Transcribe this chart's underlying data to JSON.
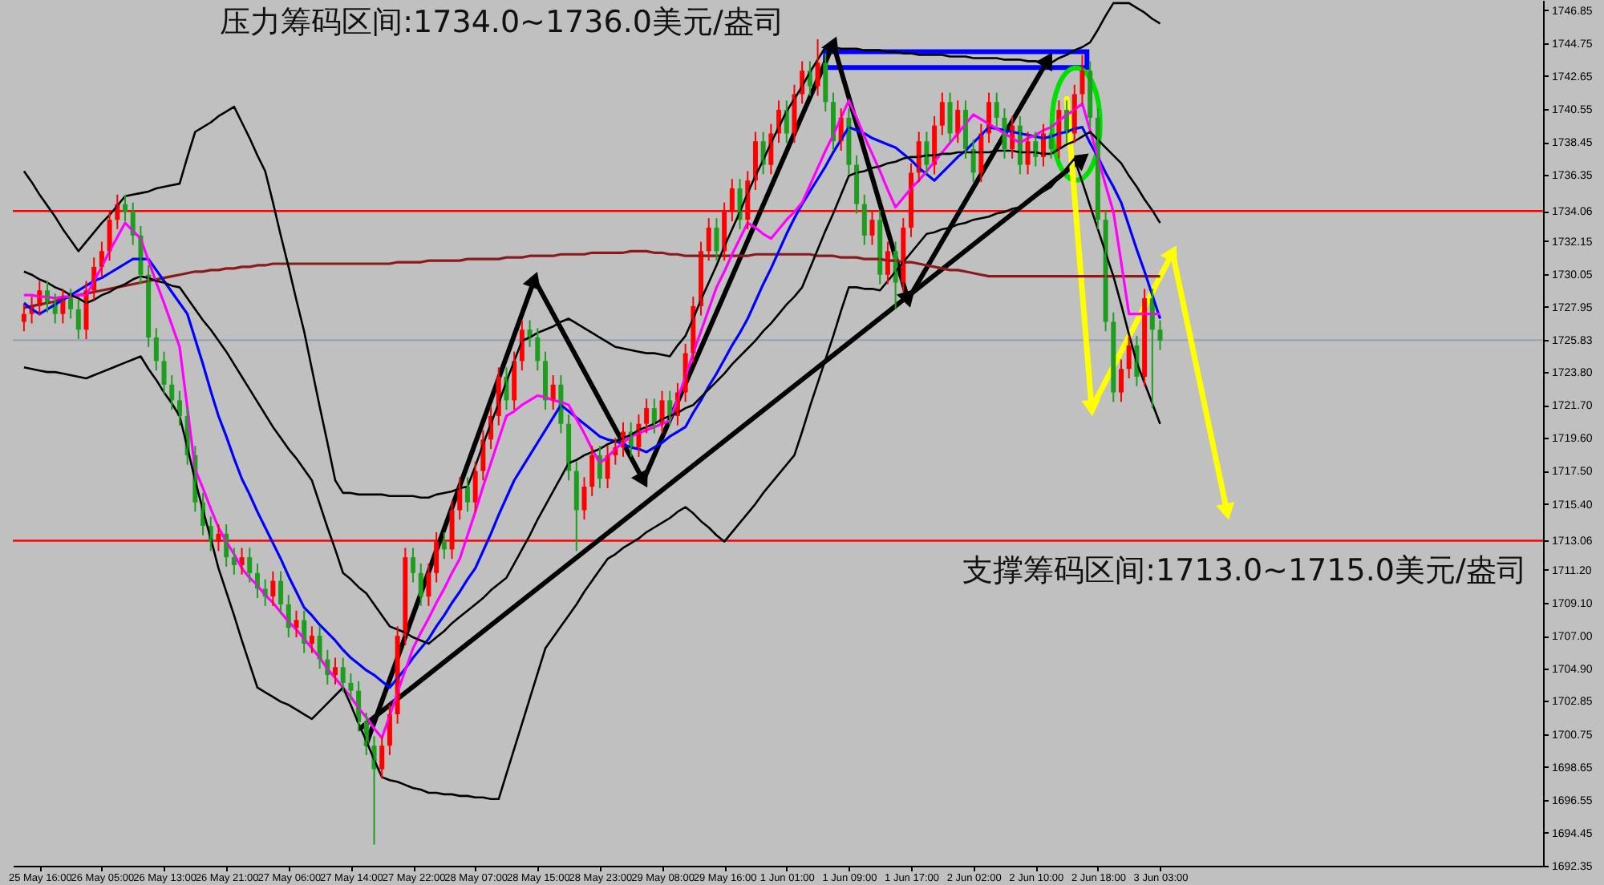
{
  "chart_data": {
    "type": "candlestick",
    "categories": [
      null,
      null,
      "25 May 16:00",
      null,
      null,
      null,
      null,
      null,
      null,
      null,
      "26 May 05:00",
      null,
      null,
      null,
      null,
      null,
      null,
      null,
      "26 May 13:00",
      null,
      null,
      null,
      null,
      null,
      null,
      null,
      "26 May 21:00",
      null,
      null,
      null,
      null,
      null,
      null,
      null,
      "27 May 06:00",
      null,
      null,
      null,
      null,
      null,
      null,
      null,
      "27 May 14:00",
      null,
      null,
      null,
      null,
      null,
      null,
      null,
      "27 May 22:00",
      null,
      null,
      null,
      null,
      null,
      null,
      null,
      "28 May 07:00",
      null,
      null,
      null,
      null,
      null,
      null,
      null,
      "28 May 15:00",
      null,
      null,
      null,
      null,
      null,
      null,
      null,
      "28 May 23:00",
      null,
      null,
      null,
      null,
      null,
      null,
      null,
      "29 May 08:00",
      null,
      null,
      null,
      null,
      null,
      null,
      null,
      "29 May 16:00",
      null,
      null,
      null,
      null,
      null,
      null,
      null,
      "1 Jun 01:00",
      null,
      null,
      null,
      null,
      null,
      null,
      null,
      "1 Jun 09:00",
      null,
      null,
      null,
      null,
      null,
      null,
      null,
      "1 Jun 17:00",
      null,
      null,
      null,
      null,
      null,
      null,
      null,
      "2 Jun 02:00",
      null,
      null,
      null,
      null,
      null,
      null,
      null,
      "2 Jun 10:00",
      null,
      null,
      null,
      null,
      null,
      null,
      null,
      "2 Jun 18:00",
      null,
      null,
      null,
      null,
      null,
      null,
      null,
      "3 Jun 03:00"
    ],
    "colors": [
      "#ff0000",
      "#ff0000",
      "#ff0000",
      "#1e9e1e",
      "#1e9e1e",
      "#ff0000",
      "#1e9e1e",
      "#1e9e1e",
      "#ff0000",
      "#ff0000",
      "#ff0000",
      "#ff0000",
      "#ff0000",
      "#1e9e1e",
      "#1e9e1e",
      "#1e9e1e",
      "#1e9e1e",
      "#1e9e1e",
      "#1e9e1e",
      "#1e9e1e",
      "#1e9e1e",
      "#1e9e1e",
      "#1e9e1e",
      "#1e9e1e",
      "#1e9e1e",
      "#ff0000",
      "#1e9e1e",
      "#1e9e1e",
      "#ff0000",
      "#1e9e1e",
      "#1e9e1e",
      "#1e9e1e",
      "#ff0000",
      "#1e9e1e",
      "#1e9e1e",
      "#ff0000",
      "#1e9e1e",
      "#ff0000",
      "#1e9e1e",
      "#1e9e1e",
      "#ff0000",
      "#1e9e1e",
      "#1e9e1e",
      "#1e9e1e",
      "#1e9e1e",
      "#1e9e1e",
      "#ff0000",
      "#ff0000",
      "#ff0000",
      "#ff0000",
      "#1e9e1e",
      "#1e9e1e",
      "#ff0000",
      "#ff0000",
      "#1e9e1e",
      "#ff0000",
      "#ff0000",
      "#1e9e1e",
      "#ff0000",
      "#ff0000",
      "#ff0000",
      "#ff0000",
      "#1e9e1e",
      "#ff0000",
      "#ff0000",
      "#1e9e1e",
      "#1e9e1e",
      "#1e9e1e",
      "#ff0000",
      "#1e9e1e",
      "#1e9e1e",
      "#1e9e1e",
      "#ff0000",
      "#ff0000",
      "#1e9e1e",
      "#ff0000",
      "#ff0000",
      "#ff0000",
      "#1e9e1e",
      "#ff0000",
      "#ff0000",
      "#1e9e1e",
      "#ff0000",
      "#1e9e1e",
      "#ff0000",
      "#ff0000",
      "#ff0000",
      "#ff0000",
      "#ff0000",
      "#1e9e1e",
      "#ff0000",
      "#ff0000",
      "#1e9e1e",
      "#ff0000",
      "#ff0000",
      "#1e9e1e",
      "#ff0000",
      "#ff0000",
      "#1e9e1e",
      "#ff0000",
      "#ff0000",
      "#1e9e1e",
      "#ff0000",
      "#1e9e1e",
      "#1e9e1e",
      "#ff0000",
      "#1e9e1e",
      "#1e9e1e",
      "#1e9e1e",
      "#ff0000",
      "#1e9e1e",
      "#ff0000",
      "#1e9e1e",
      "#ff0000",
      "#ff0000",
      "#ff0000",
      "#1e9e1e",
      "#ff0000",
      "#ff0000",
      "#1e9e1e",
      "#ff0000",
      "#1e9e1e",
      "#1e9e1e",
      "#ff0000",
      "#ff0000",
      "#1e9e1e",
      "#1e9e1e",
      "#ff0000",
      "#1e9e1e",
      "#ff0000",
      "#1e9e1e",
      "#ff0000",
      "#1e9e1e",
      "#ff0000",
      "#1e9e1e",
      "#ff0000",
      "#ff0000",
      "#1e9e1e",
      "#1e9e1e",
      "#1e9e1e",
      "#1e9e1e",
      "#ff0000",
      "#ff0000",
      "#1e9e1e",
      "#ff0000",
      "#1e9e1e",
      "#1e9e1e"
    ],
    "ylim": [
      1692.35,
      1747.5
    ],
    "yticks": [
      1746.85,
      1744.75,
      1742.65,
      1740.55,
      1738.45,
      1736.35,
      1734.06,
      1732.15,
      1730.05,
      1727.95,
      1725.83,
      {
        "value": 1723.8,
        "label": "1723.80"
      },
      {
        "value": 1721.7,
        "label": "1721.70"
      },
      {
        "value": 1719.6,
        "label": "1719.60"
      },
      {
        "value": 1717.5,
        "label": "1717.50"
      },
      {
        "value": 1715.4,
        "label": "1715.40"
      },
      1713.06,
      {
        "value": 1711.2,
        "label": "1711.20"
      },
      {
        "value": 1709.1,
        "label": "1709.10"
      },
      {
        "value": 1707.0,
        "label": "1707.00"
      },
      {
        "value": 1704.9,
        "label": "1704.90"
      },
      1702.85,
      1700.75,
      1698.65,
      1696.55,
      1694.45,
      1692.35
    ],
    "ref_lines": [
      {
        "axis": "y",
        "value": 1734.06,
        "color": "#ff0000"
      },
      {
        "axis": "y",
        "value": 1713.06,
        "color": "#ff0000"
      },
      {
        "axis": "y",
        "value": 1725.83,
        "color": "#9aa3b5"
      }
    ],
    "annotations": [
      "压力筹码区间:1734.0~1736.0美元/盎司",
      "支撑筹码区间:1713.0~1715.0美元/盎司"
    ],
    "ohlc": [
      [
        1727.0,
        1728.1,
        1726.4,
        1727.5
      ],
      [
        1727.5,
        1728.6,
        1726.9,
        1728.0
      ],
      [
        1728.0,
        1729.6,
        1727.4,
        1729.0
      ],
      [
        1729.0,
        1729.6,
        1727.6,
        1728.2
      ],
      [
        1728.2,
        1728.8,
        1726.9,
        1727.5
      ],
      [
        1727.5,
        1729.1,
        1726.9,
        1728.5
      ],
      [
        1728.5,
        1729.1,
        1727.2,
        1727.8
      ],
      [
        1727.8,
        1728.4,
        1725.9,
        1726.5
      ],
      [
        1726.5,
        1729.6,
        1725.9,
        1729.0
      ],
      [
        1729.0,
        1731.1,
        1728.4,
        1730.5
      ],
      [
        1730.5,
        1732.1,
        1729.9,
        1731.5
      ],
      [
        1731.5,
        1734.1,
        1730.9,
        1733.5
      ],
      [
        1733.5,
        1735.1,
        1732.9,
        1734.5
      ],
      [
        1734.5,
        1735.1,
        1733.4,
        1734.0
      ],
      [
        1734.0,
        1734.6,
        1731.9,
        1732.5
      ],
      [
        1732.5,
        1733.1,
        1729.4,
        1730.0
      ],
      [
        1730.0,
        1730.6,
        1725.4,
        1726.0
      ],
      [
        1726.0,
        1726.6,
        1723.9,
        1724.5
      ],
      [
        1724.5,
        1725.1,
        1722.4,
        1723.0
      ],
      [
        1723.0,
        1723.6,
        1721.4,
        1722.0
      ],
      [
        1722.0,
        1722.6,
        1720.4,
        1721.0
      ],
      [
        1721.0,
        1721.6,
        1717.9,
        1718.5
      ],
      [
        1718.5,
        1719.1,
        1714.9,
        1715.5
      ],
      [
        1715.5,
        1716.1,
        1713.4,
        1714.0
      ],
      [
        1714.0,
        1714.6,
        1712.4,
        1713.0
      ],
      [
        1713.0,
        1714.1,
        1712.4,
        1713.5
      ],
      [
        1713.5,
        1714.1,
        1711.4,
        1712.0
      ],
      [
        1712.0,
        1712.6,
        1710.9,
        1711.5
      ],
      [
        1711.5,
        1712.6,
        1710.9,
        1712.0
      ],
      [
        1712.0,
        1712.6,
        1710.4,
        1711.0
      ],
      [
        1711.0,
        1711.6,
        1709.4,
        1710.0
      ],
      [
        1710.0,
        1710.6,
        1708.9,
        1709.5
      ],
      [
        1709.5,
        1711.1,
        1708.9,
        1710.5
      ],
      [
        1710.5,
        1711.1,
        1708.4,
        1709.0
      ],
      [
        1709.0,
        1709.6,
        1706.9,
        1707.5
      ],
      [
        1707.5,
        1708.6,
        1706.9,
        1708.0
      ],
      [
        1708.0,
        1708.6,
        1705.9,
        1706.5
      ],
      [
        1706.5,
        1707.6,
        1705.9,
        1707.0
      ],
      [
        1707.0,
        1707.6,
        1704.9,
        1705.5
      ],
      [
        1705.5,
        1706.1,
        1703.9,
        1704.5
      ],
      [
        1704.5,
        1705.6,
        1703.9,
        1705.0
      ],
      [
        1705.0,
        1705.6,
        1703.4,
        1704.0
      ],
      [
        1704.0,
        1704.6,
        1702.9,
        1703.5
      ],
      [
        1703.5,
        1704.1,
        1700.9,
        1701.5
      ],
      [
        1701.5,
        1702.1,
        1699.4,
        1700.0
      ],
      [
        1700.0,
        1700.6,
        1693.7,
        1698.5
      ],
      [
        1698.5,
        1700.6,
        1697.9,
        1700.0
      ],
      [
        1700.0,
        1702.6,
        1699.4,
        1702.0
      ],
      [
        1702.0,
        1707.6,
        1701.4,
        1707.0
      ],
      [
        1707.0,
        1712.6,
        1706.4,
        1712.0
      ],
      [
        1712.0,
        1712.6,
        1710.4,
        1711.0
      ],
      [
        1711.0,
        1711.6,
        1708.9,
        1709.5
      ],
      [
        1709.5,
        1711.6,
        1708.9,
        1711.0
      ],
      [
        1711.0,
        1713.6,
        1710.4,
        1713.0
      ],
      [
        1713.0,
        1713.6,
        1711.9,
        1712.5
      ],
      [
        1712.5,
        1715.6,
        1711.9,
        1715.0
      ],
      [
        1715.0,
        1717.1,
        1714.4,
        1716.5
      ],
      [
        1716.5,
        1717.1,
        1714.9,
        1715.5
      ],
      [
        1715.5,
        1718.1,
        1714.9,
        1717.5
      ],
      [
        1717.5,
        1720.1,
        1716.9,
        1719.5
      ],
      [
        1719.5,
        1721.6,
        1718.9,
        1721.0
      ],
      [
        1721.0,
        1724.1,
        1720.4,
        1723.5
      ],
      [
        1723.5,
        1724.1,
        1721.4,
        1722.0
      ],
      [
        1722.0,
        1725.1,
        1721.4,
        1724.5
      ],
      [
        1724.5,
        1727.1,
        1723.9,
        1726.5
      ],
      [
        1726.5,
        1727.1,
        1725.4,
        1726.0
      ],
      [
        1726.0,
        1726.6,
        1723.9,
        1724.5
      ],
      [
        1724.5,
        1725.1,
        1721.4,
        1722.0
      ],
      [
        1722.0,
        1723.6,
        1721.4,
        1723.0
      ],
      [
        1723.0,
        1723.6,
        1719.9,
        1720.5
      ],
      [
        1720.5,
        1721.1,
        1716.9,
        1717.5
      ],
      [
        1717.5,
        1718.1,
        1712.4,
        1715.0
      ],
      [
        1715.0,
        1717.1,
        1714.4,
        1716.5
      ],
      [
        1716.5,
        1719.1,
        1715.9,
        1718.5
      ],
      [
        1718.5,
        1719.1,
        1716.4,
        1717.0
      ],
      [
        1717.0,
        1719.1,
        1716.4,
        1718.5
      ],
      [
        1718.5,
        1719.6,
        1717.9,
        1719.0
      ],
      [
        1719.0,
        1720.6,
        1718.4,
        1720.0
      ],
      [
        1720.0,
        1720.6,
        1718.4,
        1719.0
      ],
      [
        1719.0,
        1721.1,
        1718.4,
        1720.5
      ],
      [
        1720.5,
        1722.1,
        1719.9,
        1721.5
      ],
      [
        1721.5,
        1722.1,
        1719.9,
        1720.5
      ],
      [
        1720.5,
        1722.6,
        1719.9,
        1722.0
      ],
      [
        1722.0,
        1722.6,
        1720.4,
        1721.0
      ],
      [
        1721.0,
        1723.1,
        1720.4,
        1722.5
      ],
      [
        1722.5,
        1725.6,
        1721.9,
        1725.0
      ],
      [
        1725.0,
        1728.6,
        1724.4,
        1728.0
      ],
      [
        1728.0,
        1732.1,
        1727.4,
        1731.5
      ],
      [
        1731.5,
        1733.6,
        1730.9,
        1733.0
      ],
      [
        1733.0,
        1733.6,
        1730.9,
        1731.5
      ],
      [
        1731.5,
        1734.6,
        1730.9,
        1734.0
      ],
      [
        1734.0,
        1736.1,
        1733.4,
        1735.5
      ],
      [
        1735.5,
        1736.1,
        1732.9,
        1733.5
      ],
      [
        1733.5,
        1736.6,
        1732.9,
        1736.0
      ],
      [
        1736.0,
        1739.1,
        1735.4,
        1738.5
      ],
      [
        1738.5,
        1739.1,
        1736.4,
        1737.0
      ],
      [
        1737.0,
        1739.6,
        1736.4,
        1739.0
      ],
      [
        1739.0,
        1741.1,
        1738.4,
        1740.5
      ],
      [
        1740.5,
        1741.1,
        1738.4,
        1739.0
      ],
      [
        1739.0,
        1742.1,
        1738.4,
        1741.5
      ],
      [
        1741.5,
        1743.6,
        1740.9,
        1743.0
      ],
      [
        1743.0,
        1743.6,
        1741.4,
        1742.0
      ],
      [
        1742.0,
        1745.0,
        1741.4,
        1743.5
      ],
      [
        1743.5,
        1744.1,
        1740.4,
        1741.0
      ],
      [
        1741.0,
        1741.6,
        1737.9,
        1738.5
      ],
      [
        1738.5,
        1740.6,
        1737.9,
        1740.0
      ],
      [
        1740.0,
        1740.6,
        1736.4,
        1737.0
      ],
      [
        1737.0,
        1737.6,
        1733.9,
        1734.5
      ],
      [
        1734.5,
        1735.1,
        1731.9,
        1732.5
      ],
      [
        1732.5,
        1734.1,
        1731.9,
        1733.5
      ],
      [
        1733.5,
        1734.1,
        1729.4,
        1730.0
      ],
      [
        1730.0,
        1732.1,
        1729.4,
        1731.5
      ],
      [
        1731.5,
        1732.1,
        1727.8,
        1729.5
      ],
      [
        1729.5,
        1733.6,
        1728.9,
        1733.0
      ],
      [
        1733.0,
        1737.1,
        1732.4,
        1736.5
      ],
      [
        1736.5,
        1739.1,
        1735.9,
        1738.5
      ],
      [
        1738.5,
        1739.1,
        1736.4,
        1737.0
      ],
      [
        1737.0,
        1740.1,
        1736.4,
        1739.5
      ],
      [
        1739.5,
        1741.6,
        1738.9,
        1741.0
      ],
      [
        1741.0,
        1741.6,
        1738.4,
        1739.0
      ],
      [
        1739.0,
        1741.1,
        1738.4,
        1740.5
      ],
      [
        1740.5,
        1741.1,
        1737.4,
        1738.0
      ],
      [
        1738.0,
        1738.6,
        1735.9,
        1736.5
      ],
      [
        1736.5,
        1739.6,
        1735.9,
        1739.0
      ],
      [
        1739.0,
        1741.6,
        1738.4,
        1741.0
      ],
      [
        1741.0,
        1741.6,
        1739.4,
        1740.0
      ],
      [
        1740.0,
        1740.6,
        1737.4,
        1738.0
      ],
      [
        1738.0,
        1740.1,
        1737.4,
        1739.5
      ],
      [
        1739.5,
        1740.1,
        1736.4,
        1737.0
      ],
      [
        1737.0,
        1739.1,
        1736.4,
        1738.5
      ],
      [
        1738.5,
        1739.1,
        1736.9,
        1737.5
      ],
      [
        1737.5,
        1739.6,
        1736.9,
        1739.0
      ],
      [
        1739.0,
        1739.6,
        1737.4,
        1738.0
      ],
      [
        1738.0,
        1741.1,
        1737.4,
        1740.5
      ],
      [
        1740.5,
        1741.1,
        1738.4,
        1739.0
      ],
      [
        1739.0,
        1742.1,
        1738.4,
        1741.5
      ],
      [
        1741.5,
        1744.0,
        1740.9,
        1743.0
      ],
      [
        1743.0,
        1743.6,
        1739.4,
        1740.0
      ],
      [
        1740.0,
        1740.6,
        1732.9,
        1733.5
      ],
      [
        1733.5,
        1734.1,
        1726.4,
        1727.0
      ],
      [
        1727.0,
        1727.6,
        1721.9,
        1722.5
      ],
      [
        1722.5,
        1724.6,
        1721.9,
        1724.0
      ],
      [
        1724.0,
        1726.1,
        1723.4,
        1725.5
      ],
      [
        1725.5,
        1726.1,
        1722.9,
        1723.5
      ],
      [
        1723.5,
        1729.1,
        1722.9,
        1728.5
      ],
      [
        1728.5,
        1729.1,
        1721.5,
        1726.5
      ],
      [
        1726.5,
        1727.1,
        1725.2,
        1725.8
      ]
    ],
    "series": [
      {
        "type": "line",
        "color": "#8b1a1a",
        "values": [
          1727.9,
          1728.0,
          1728.1,
          1728.2,
          1728.3,
          1728.5,
          1728.6,
          1728.7,
          1728.8,
          1728.9,
          1729.0,
          1729.1,
          1729.2,
          1729.3,
          1729.4,
          1729.5,
          1729.6,
          1729.7,
          1729.8,
          1729.9,
          1730.0,
          1730.1,
          1730.2,
          1730.2,
          1730.3,
          1730.3,
          1730.4,
          1730.4,
          1730.5,
          1730.5,
          1730.6,
          1730.6,
          1730.7,
          1730.7,
          1730.7,
          1730.7,
          1730.7,
          1730.7,
          1730.7,
          1730.7,
          1730.7,
          1730.7,
          1730.7,
          1730.7,
          1730.7,
          1730.7,
          1730.7,
          1730.7,
          1730.8,
          1730.8,
          1730.8,
          1730.8,
          1730.9,
          1730.9,
          1730.9,
          1730.9,
          1730.9,
          1731.0,
          1731.0,
          1731.0,
          1731.0,
          1731.0,
          1731.1,
          1731.1,
          1731.1,
          1731.2,
          1731.2,
          1731.2,
          1731.2,
          1731.3,
          1731.3,
          1731.3,
          1731.3,
          1731.4,
          1731.4,
          1731.4,
          1731.4,
          1731.4,
          1731.5,
          1731.5,
          1731.5,
          1731.4,
          1731.4,
          1731.3,
          1731.3,
          1731.2,
          1731.2,
          1731.2,
          1731.2,
          1731.2,
          1731.2,
          1731.2,
          1731.2,
          1731.2,
          1731.3,
          1731.3,
          1731.3,
          1731.3,
          1731.3,
          1731.3,
          1731.3,
          1731.3,
          1731.2,
          1731.2,
          1731.2,
          1731.1,
          1731.1,
          1731.1,
          1731.0,
          1731.0,
          1731.0,
          1730.9,
          1730.9,
          1730.8,
          1730.8,
          1730.7,
          1730.6,
          1730.5,
          1730.4,
          1730.3,
          1730.3,
          1730.2,
          1730.1,
          1730.0,
          1729.9,
          1729.9,
          1729.9,
          1729.9,
          1729.9,
          1729.9,
          1729.9,
          1729.9,
          1729.9,
          1729.9,
          1729.9,
          1729.9,
          1729.9,
          1729.9,
          1729.9,
          1729.9,
          1729.9,
          1729.9,
          1729.9,
          1729.9,
          1729.9,
          1729.9,
          1729.9
        ]
      },
      {
        "type": "line",
        "color": "#0000ff",
        "values": [
          1728.2,
          1727.8,
          1727.5,
          1727.8,
          1728.1,
          1728.4,
          1728.7,
          1729.0,
          1729.3,
          1729.6,
          1729.8,
          1730.1,
          1730.4,
          1730.7,
          1731.0,
          1731.0,
          1731.0,
          1730.3,
          1729.6,
          1728.9,
          1728.2,
          1727.5,
          1725.9,
          1724.3,
          1722.6,
          1721.0,
          1719.7,
          1718.3,
          1717.0,
          1716.0,
          1714.9,
          1713.9,
          1712.9,
          1711.9,
          1710.8,
          1709.8,
          1708.8,
          1708.3,
          1707.7,
          1707.2,
          1706.7,
          1706.1,
          1705.6,
          1705.2,
          1704.8,
          1704.5,
          1704.1,
          1703.7,
          1704.3,
          1704.9,
          1705.6,
          1706.2,
          1706.8,
          1707.6,
          1708.3,
          1709.1,
          1709.8,
          1710.6,
          1711.3,
          1712.4,
          1713.5,
          1714.7,
          1715.8,
          1716.9,
          1717.7,
          1718.5,
          1719.3,
          1720.1,
          1720.9,
          1721.7,
          1721.3,
          1720.9,
          1720.5,
          1720.1,
          1719.7,
          1719.5,
          1719.4,
          1719.2,
          1719.0,
          1718.9,
          1718.7,
          1719.0,
          1719.3,
          1719.7,
          1720.0,
          1720.3,
          1721.2,
          1722.0,
          1722.9,
          1723.7,
          1724.6,
          1725.5,
          1726.3,
          1727.2,
          1728.3,
          1729.4,
          1730.4,
          1731.5,
          1732.6,
          1733.6,
          1734.5,
          1735.3,
          1736.1,
          1736.9,
          1737.8,
          1738.6,
          1739.4,
          1739.2,
          1739.0,
          1738.7,
          1738.5,
          1738.3,
          1738.1,
          1737.7,
          1737.3,
          1736.8,
          1736.4,
          1736.0,
          1736.5,
          1737.0,
          1737.5,
          1737.9,
          1738.4,
          1738.9,
          1739.4,
          1739.3,
          1739.2,
          1739.1,
          1739.0,
          1738.9,
          1738.8,
          1738.7,
          1738.8,
          1739.0,
          1739.1,
          1739.3,
          1739.4,
          1738.4,
          1737.5,
          1736.5,
          1735.6,
          1734.6,
          1733.1,
          1731.6,
          1730.2,
          1728.7,
          1727.2
        ]
      },
      {
        "type": "line",
        "color": "#ff00ff",
        "values": [
          1728.7,
          1728.7,
          1728.6,
          1728.6,
          1728.5,
          1728.6,
          1728.6,
          1728.7,
          1728.7,
          1729.6,
          1730.5,
          1731.5,
          1732.4,
          1733.3,
          1732.8,
          1732.3,
          1730.9,
          1729.5,
          1728.2,
          1726.8,
          1725.4,
          1721.5,
          1717.6,
          1716.4,
          1715.1,
          1713.9,
          1713.0,
          1712.2,
          1711.3,
          1710.7,
          1710.2,
          1709.6,
          1709.1,
          1708.5,
          1707.9,
          1707.4,
          1706.8,
          1706.2,
          1705.6,
          1704.9,
          1704.3,
          1703.7,
          1703.1,
          1702.4,
          1701.8,
          1701.1,
          1700.5,
          1701.9,
          1703.4,
          1704.8,
          1706.2,
          1707.2,
          1708.1,
          1709.1,
          1710.0,
          1711.0,
          1711.9,
          1713.4,
          1714.9,
          1716.5,
          1718.0,
          1719.5,
          1721.0,
          1721.3,
          1721.7,
          1722.0,
          1722.3,
          1722.2,
          1722.0,
          1721.9,
          1721.7,
          1720.8,
          1719.9,
          1718.9,
          1718.0,
          1718.4,
          1718.9,
          1719.3,
          1719.7,
          1719.9,
          1720.1,
          1720.3,
          1720.5,
          1720.7,
          1722.1,
          1723.5,
          1725.0,
          1726.4,
          1727.8,
          1729.2,
          1730.2,
          1731.3,
          1732.3,
          1733.3,
          1733.0,
          1732.6,
          1732.3,
          1732.9,
          1733.5,
          1734.0,
          1734.6,
          1735.7,
          1736.8,
          1737.9,
          1738.9,
          1740.0,
          1741.1,
          1740.0,
          1738.8,
          1737.7,
          1736.6,
          1735.4,
          1734.3,
          1734.9,
          1735.5,
          1736.0,
          1736.6,
          1737.2,
          1737.8,
          1738.4,
          1739.0,
          1739.6,
          1740.2,
          1739.9,
          1739.6,
          1739.3,
          1739.0,
          1738.7,
          1738.4,
          1738.7,
          1738.9,
          1739.2,
          1739.4,
          1739.8,
          1740.2,
          1740.5,
          1740.9,
          1739.2,
          1737.5,
          1735.7,
          1734.0,
          1730.8,
          1727.5,
          1727.5,
          1727.5,
          1727.5,
          1727.5
        ]
      },
      {
        "type": "line",
        "color": "#000000",
        "values": [
          1736.6,
          1735.9,
          1735.1,
          1734.4,
          1733.7,
          1732.9,
          1732.2,
          1731.5,
          1732.1,
          1732.7,
          1733.3,
          1733.8,
          1734.4,
          1735.0,
          1735.1,
          1735.2,
          1735.3,
          1735.5,
          1735.6,
          1735.7,
          1735.8,
          1737.5,
          1739.1,
          1739.4,
          1739.7,
          1740.1,
          1740.4,
          1740.7,
          1739.7,
          1738.7,
          1737.6,
          1736.6,
          1734.6,
          1732.5,
          1730.5,
          1728.4,
          1726.4,
          1724.0,
          1721.6,
          1719.3,
          1716.9,
          1716.1,
          1716.1,
          1716.0,
          1716.0,
          1716.0,
          1716.0,
          1715.9,
          1715.9,
          1715.9,
          1715.9,
          1715.8,
          1715.8,
          1716.0,
          1716.1,
          1716.2,
          1716.4,
          1716.5,
          1717.8,
          1719.2,
          1720.5,
          1721.8,
          1723.2,
          1724.5,
          1725.8,
          1726.0,
          1726.3,
          1726.5,
          1726.7,
          1727.0,
          1727.2,
          1726.9,
          1726.6,
          1726.3,
          1726.0,
          1725.7,
          1725.4,
          1725.3,
          1725.2,
          1725.1,
          1725.0,
          1725.0,
          1724.9,
          1724.8,
          1725.5,
          1726.1,
          1727.2,
          1728.4,
          1729.5,
          1730.6,
          1731.8,
          1732.9,
          1734.0,
          1735.2,
          1736.3,
          1737.3,
          1738.4,
          1739.4,
          1740.4,
          1741.2,
          1742.0,
          1742.9,
          1743.7,
          1744.5,
          1744.5,
          1744.4,
          1744.4,
          1744.4,
          1744.3,
          1744.3,
          1744.3,
          1744.2,
          1744.2,
          1744.1,
          1744.1,
          1744.0,
          1744.0,
          1744.0,
          1744.0,
          1743.9,
          1743.9,
          1743.9,
          1743.8,
          1743.8,
          1743.8,
          1743.8,
          1743.7,
          1743.7,
          1743.7,
          1743.6,
          1743.6,
          1743.5,
          1743.5,
          1743.8,
          1744.0,
          1744.3,
          1744.5,
          1744.8,
          1745.6,
          1746.5,
          1747.3,
          1747.3,
          1747.3,
          1747.0,
          1746.7,
          1746.3,
          1746.0
        ]
      },
      {
        "type": "line",
        "color": "#000000",
        "values": [
          1730.2,
          1730.0,
          1729.7,
          1729.5,
          1729.2,
          1729.0,
          1728.7,
          1728.5,
          1728.2,
          1728.4,
          1728.7,
          1728.9,
          1729.2,
          1729.4,
          1729.7,
          1729.9,
          1729.8,
          1729.6,
          1729.5,
          1729.3,
          1729.2,
          1728.5,
          1727.8,
          1727.1,
          1726.5,
          1725.8,
          1725.1,
          1724.3,
          1723.5,
          1722.7,
          1721.9,
          1721.1,
          1720.3,
          1719.6,
          1718.9,
          1718.3,
          1717.6,
          1716.9,
          1715.4,
          1713.9,
          1712.5,
          1711.0,
          1710.6,
          1710.1,
          1709.7,
          1709.0,
          1708.3,
          1707.6,
          1707.4,
          1707.2,
          1706.9,
          1706.7,
          1706.5,
          1706.9,
          1707.3,
          1707.8,
          1708.2,
          1708.6,
          1709.0,
          1709.4,
          1709.9,
          1710.3,
          1710.7,
          1711.6,
          1712.5,
          1713.4,
          1714.4,
          1715.3,
          1716.2,
          1717.1,
          1718.0,
          1718.2,
          1718.5,
          1718.7,
          1718.9,
          1719.2,
          1719.4,
          1719.6,
          1719.8,
          1720.1,
          1720.3,
          1720.5,
          1720.8,
          1721.0,
          1721.2,
          1721.5,
          1721.7,
          1722.2,
          1722.7,
          1723.2,
          1723.7,
          1724.3,
          1724.8,
          1725.3,
          1725.8,
          1726.4,
          1726.9,
          1727.5,
          1728.1,
          1728.6,
          1729.2,
          1730.4,
          1731.6,
          1732.8,
          1733.9,
          1735.1,
          1736.3,
          1736.5,
          1736.6,
          1736.8,
          1736.9,
          1737.1,
          1737.2,
          1737.4,
          1737.5,
          1737.5,
          1737.6,
          1737.6,
          1737.7,
          1737.7,
          1737.8,
          1737.8,
          1737.8,
          1737.8,
          1737.8,
          1737.9,
          1737.9,
          1737.9,
          1737.8,
          1737.8,
          1737.8,
          1737.7,
          1737.7,
          1738.0,
          1738.3,
          1738.5,
          1738.8,
          1739.1,
          1738.6,
          1738.1,
          1737.6,
          1737.1,
          1736.3,
          1735.6,
          1734.8,
          1734.1,
          1733.3
        ]
      },
      {
        "type": "line",
        "color": "#000000",
        "values": [
          1724.1,
          1724.0,
          1723.9,
          1723.8,
          1723.8,
          1723.7,
          1723.6,
          1723.5,
          1723.4,
          1723.6,
          1723.8,
          1724.0,
          1724.2,
          1724.4,
          1724.6,
          1724.8,
          1724.0,
          1723.3,
          1722.5,
          1721.8,
          1721.0,
          1719.0,
          1716.9,
          1715.0,
          1713.2,
          1711.3,
          1709.8,
          1708.3,
          1706.7,
          1705.2,
          1703.7,
          1703.4,
          1703.1,
          1702.8,
          1702.6,
          1702.3,
          1702.0,
          1701.7,
          1702.2,
          1702.7,
          1703.2,
          1703.7,
          1702.6,
          1701.4,
          1700.3,
          1699.1,
          1698.0,
          1697.8,
          1697.7,
          1697.5,
          1697.3,
          1697.2,
          1697.0,
          1697.0,
          1696.9,
          1696.9,
          1696.8,
          1696.8,
          1696.7,
          1696.7,
          1696.6,
          1696.6,
          1698.2,
          1699.8,
          1701.4,
          1703.0,
          1704.6,
          1706.2,
          1706.9,
          1707.6,
          1708.3,
          1709.0,
          1709.8,
          1710.5,
          1711.2,
          1711.9,
          1712.2,
          1712.6,
          1712.9,
          1713.2,
          1713.6,
          1713.9,
          1714.2,
          1714.5,
          1714.9,
          1715.2,
          1714.8,
          1714.3,
          1713.9,
          1713.4,
          1713.0,
          1713.6,
          1714.2,
          1714.8,
          1715.4,
          1716.1,
          1716.7,
          1717.3,
          1717.9,
          1718.5,
          1720.0,
          1721.6,
          1723.1,
          1724.6,
          1726.1,
          1727.7,
          1729.2,
          1729.2,
          1729.1,
          1729.1,
          1729.0,
          1729.6,
          1730.2,
          1730.8,
          1731.4,
          1732.0,
          1732.6,
          1732.7,
          1732.9,
          1733.0,
          1733.2,
          1733.3,
          1733.5,
          1733.6,
          1733.7,
          1733.9,
          1734.0,
          1734.2,
          1734.3,
          1734.6,
          1735.0,
          1735.3,
          1735.6,
          1736.2,
          1736.8,
          1737.4,
          1735.9,
          1734.4,
          1732.9,
          1731.4,
          1729.9,
          1728.1,
          1726.2,
          1724.4,
          1723.1,
          1721.8,
          1720.5
        ]
      }
    ]
  }
}
